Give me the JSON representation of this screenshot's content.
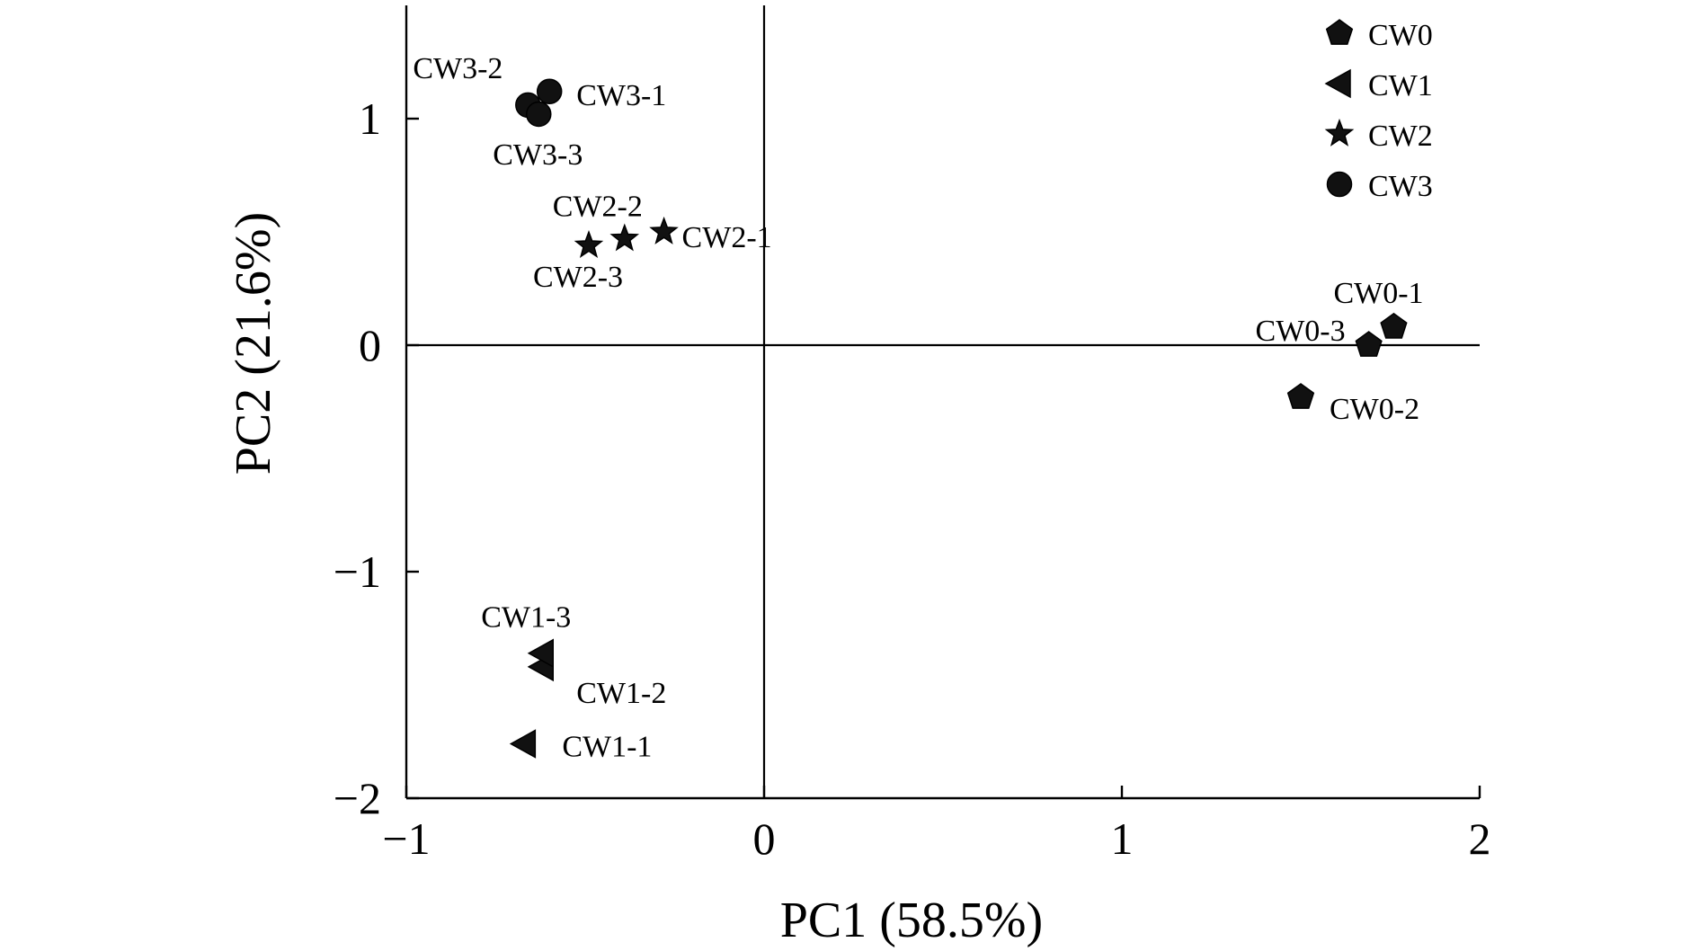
{
  "chart_data": {
    "type": "scatter",
    "title": "",
    "xlabel": "PC1 (58.5%)",
    "ylabel": "PC2 (21.6%)",
    "xlim": [
      -1,
      2
    ],
    "ylim": [
      -2,
      1.5
    ],
    "xticks": [
      -1,
      0,
      1,
      2
    ],
    "yticks": [
      -2,
      -1,
      0,
      1
    ],
    "xtick_labels": [
      "−1",
      "0",
      "1",
      "2"
    ],
    "ytick_labels": [
      "−2",
      "−1",
      "0",
      "1"
    ],
    "grid": false,
    "zero_lines": true,
    "legend_position": "top-right",
    "series": [
      {
        "name": "CW0",
        "marker": "pentagon",
        "points": [
          {
            "label": "CW0-1",
            "x": 1.76,
            "y": 0.08
          },
          {
            "label": "CW0-2",
            "x": 1.5,
            "y": -0.23
          },
          {
            "label": "CW0-3",
            "x": 1.69,
            "y": 0.0
          }
        ]
      },
      {
        "name": "CW1",
        "marker": "triangle-left",
        "points": [
          {
            "label": "CW1-1",
            "x": -0.67,
            "y": -1.76
          },
          {
            "label": "CW1-2",
            "x": -0.62,
            "y": -1.42
          },
          {
            "label": "CW1-3",
            "x": -0.62,
            "y": -1.36
          }
        ]
      },
      {
        "name": "CW2",
        "marker": "star",
        "points": [
          {
            "label": "CW2-1",
            "x": -0.28,
            "y": 0.5
          },
          {
            "label": "CW2-2",
            "x": -0.39,
            "y": 0.47
          },
          {
            "label": "CW2-3",
            "x": -0.49,
            "y": 0.44
          }
        ]
      },
      {
        "name": "CW3",
        "marker": "circle",
        "points": [
          {
            "label": "CW3-1",
            "x": -0.6,
            "y": 1.12
          },
          {
            "label": "CW3-2",
            "x": -0.66,
            "y": 1.06
          },
          {
            "label": "CW3-3",
            "x": -0.63,
            "y": 1.02
          }
        ]
      }
    ]
  }
}
